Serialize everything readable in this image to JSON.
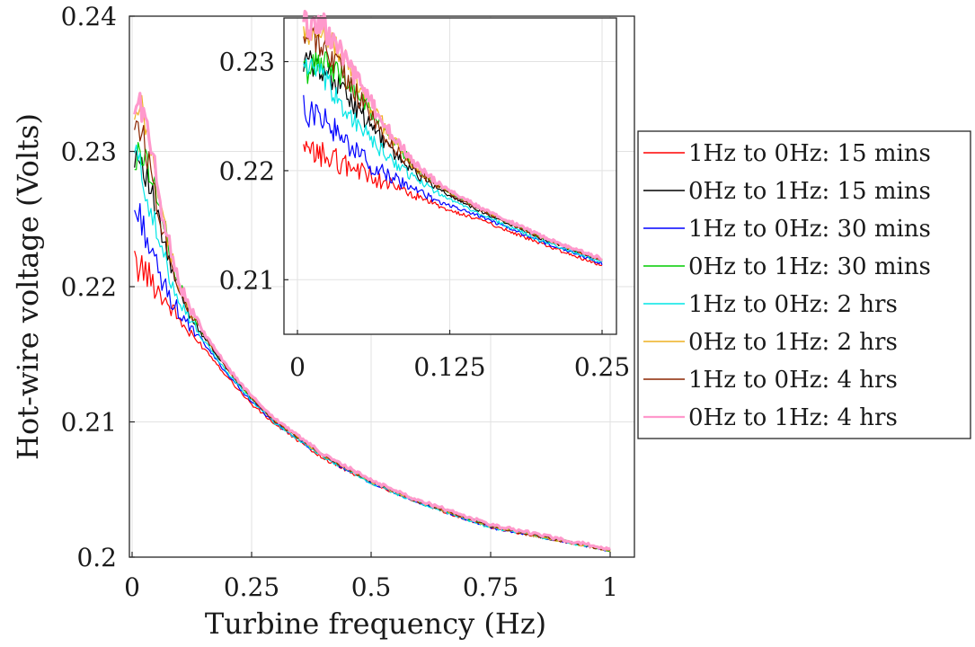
{
  "chart_data": [
    {
      "type": "line",
      "panel": "main",
      "xlabel": "Turbine frequency (Hz)",
      "ylabel": "Hot-wire voltage (Volts)",
      "xlim": [
        0,
        1
      ],
      "ylim": [
        0.2,
        0.24
      ],
      "xticks": [
        0,
        0.25,
        0.5,
        0.75,
        1
      ],
      "xtick_labels": [
        "0",
        "0.25",
        "0.5",
        "0.75",
        "1"
      ],
      "yticks": [
        0.2,
        0.21,
        0.22,
        0.23,
        0.24
      ],
      "ytick_labels": [
        "0.2",
        "0.21",
        "0.22",
        "0.23",
        "0.24"
      ],
      "grid": true,
      "legend_position": "outside-right",
      "series": [
        {
          "name": "1Hz to 0Hz: 15 mins",
          "color": "#ff0000",
          "x": [
            0.005,
            0.02,
            0.04,
            0.06,
            0.08,
            0.1,
            0.12,
            0.15,
            0.2,
            0.25,
            0.3,
            0.4,
            0.5,
            0.6,
            0.75,
            0.9,
            1.0
          ],
          "y": [
            0.2215,
            0.2215,
            0.2205,
            0.2195,
            0.2185,
            0.2175,
            0.2165,
            0.2155,
            0.2133,
            0.2113,
            0.2098,
            0.2073,
            0.2055,
            0.204,
            0.2022,
            0.2012,
            0.2005
          ]
        },
        {
          "name": "0Hz to 1Hz: 15 mins",
          "color": "#000000",
          "x": [
            0.005,
            0.02,
            0.04,
            0.06,
            0.08,
            0.1,
            0.12,
            0.15,
            0.2,
            0.25,
            0.3,
            0.4,
            0.5,
            0.6,
            0.75,
            0.9,
            1.0
          ],
          "y": [
            0.23,
            0.2295,
            0.227,
            0.224,
            0.2215,
            0.2195,
            0.218,
            0.2163,
            0.2138,
            0.2117,
            0.21,
            0.2075,
            0.2056,
            0.2041,
            0.2023,
            0.2012,
            0.2005
          ]
        },
        {
          "name": "1Hz to 0Hz: 30 mins",
          "color": "#0000ff",
          "x": [
            0.005,
            0.02,
            0.04,
            0.06,
            0.08,
            0.1,
            0.12,
            0.15,
            0.2,
            0.25,
            0.3,
            0.4,
            0.5,
            0.6,
            0.75,
            0.9,
            1.0
          ],
          "y": [
            0.2255,
            0.225,
            0.2225,
            0.2205,
            0.2192,
            0.218,
            0.217,
            0.2158,
            0.2135,
            0.2115,
            0.2099,
            0.2074,
            0.2055,
            0.204,
            0.2022,
            0.2012,
            0.2005
          ]
        },
        {
          "name": "0Hz to 1Hz: 30 mins",
          "color": "#00cc00",
          "x": [
            0.005,
            0.02,
            0.04,
            0.06,
            0.08,
            0.1,
            0.12,
            0.15,
            0.2,
            0.25,
            0.3,
            0.4,
            0.5,
            0.6,
            0.75,
            0.9,
            1.0
          ],
          "y": [
            0.229,
            0.23,
            0.2285,
            0.2255,
            0.2225,
            0.22,
            0.2183,
            0.2165,
            0.2139,
            0.2118,
            0.2101,
            0.2075,
            0.2056,
            0.2041,
            0.2023,
            0.2012,
            0.2005
          ]
        },
        {
          "name": "1Hz to 0Hz: 2 hrs",
          "color": "#00e5e5",
          "x": [
            0.005,
            0.02,
            0.04,
            0.06,
            0.08,
            0.1,
            0.12,
            0.15,
            0.2,
            0.25,
            0.3,
            0.4,
            0.5,
            0.6,
            0.75,
            0.9,
            1.0
          ],
          "y": [
            0.23,
            0.2285,
            0.2255,
            0.2228,
            0.2207,
            0.219,
            0.2177,
            0.216,
            0.2136,
            0.2116,
            0.2099,
            0.2074,
            0.2055,
            0.204,
            0.2022,
            0.2012,
            0.2005
          ]
        },
        {
          "name": "0Hz to 1Hz: 2 hrs",
          "color": "#edb120",
          "x": [
            0.005,
            0.02,
            0.04,
            0.06,
            0.08,
            0.1,
            0.12,
            0.15,
            0.2,
            0.25,
            0.3,
            0.4,
            0.5,
            0.6,
            0.75,
            0.9,
            1.0
          ],
          "y": [
            0.232,
            0.233,
            0.23,
            0.226,
            0.2225,
            0.22,
            0.2183,
            0.2165,
            0.2139,
            0.2118,
            0.2101,
            0.2075,
            0.2056,
            0.2041,
            0.2023,
            0.2012,
            0.2005
          ]
        },
        {
          "name": "1Hz to 0Hz: 4 hrs",
          "color": "#8b2500",
          "x": [
            0.005,
            0.02,
            0.04,
            0.06,
            0.08,
            0.1,
            0.12,
            0.15,
            0.2,
            0.25,
            0.3,
            0.4,
            0.5,
            0.6,
            0.75,
            0.9,
            1.0
          ],
          "y": [
            0.2325,
            0.2315,
            0.2285,
            0.225,
            0.222,
            0.2198,
            0.2182,
            0.2164,
            0.2139,
            0.2118,
            0.21,
            0.2075,
            0.2056,
            0.2041,
            0.2023,
            0.2012,
            0.2005
          ]
        },
        {
          "name": "0Hz to 1Hz: 4 hrs",
          "color": "#ff99cc",
          "x": [
            0.005,
            0.02,
            0.04,
            0.06,
            0.08,
            0.1,
            0.12,
            0.15,
            0.2,
            0.25,
            0.3,
            0.4,
            0.5,
            0.6,
            0.75,
            0.9,
            1.0
          ],
          "y": [
            0.2332,
            0.2335,
            0.23,
            0.2262,
            0.2228,
            0.2202,
            0.2185,
            0.2166,
            0.214,
            0.2119,
            0.2102,
            0.2076,
            0.2057,
            0.2042,
            0.2024,
            0.2013,
            0.2006
          ]
        }
      ]
    },
    {
      "type": "line",
      "panel": "inset",
      "xlim": [
        0,
        0.25
      ],
      "ylim": [
        0.205,
        0.234
      ],
      "xticks": [
        0,
        0.125,
        0.25
      ],
      "xtick_labels": [
        "0",
        "0.125",
        "0.25"
      ],
      "yticks": [
        0.21,
        0.22,
        0.23
      ],
      "ytick_labels": [
        "0.21",
        "0.22",
        "0.23"
      ],
      "grid": true
    }
  ]
}
